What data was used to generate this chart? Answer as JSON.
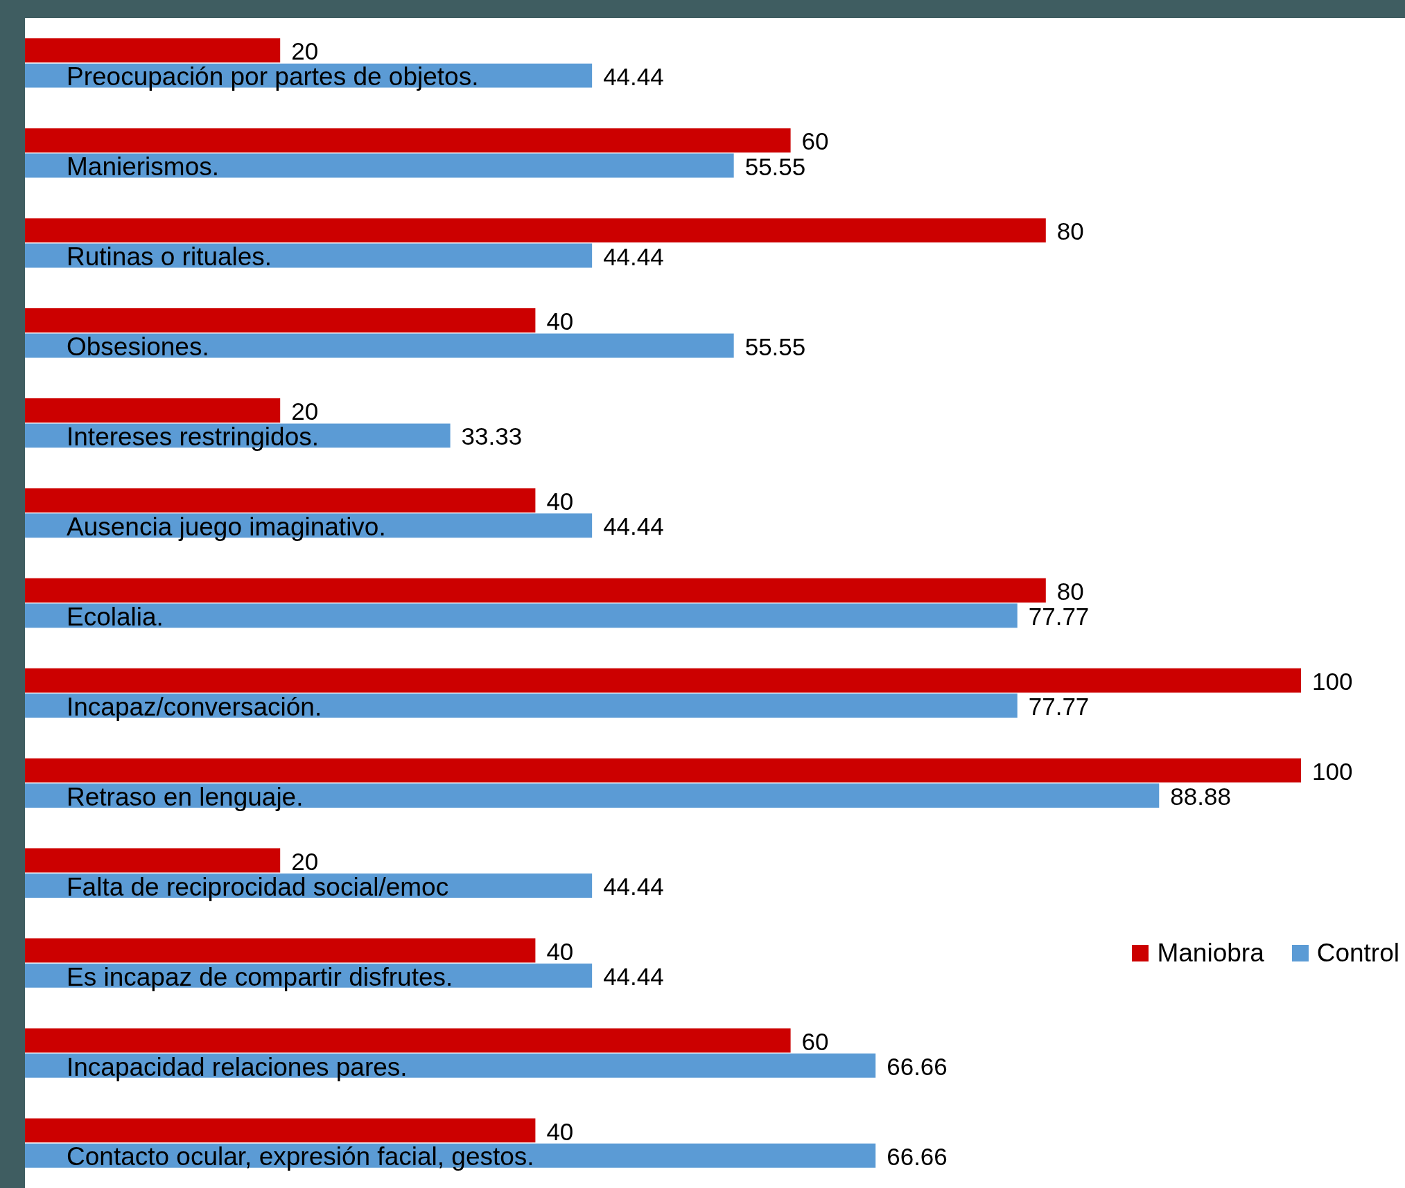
{
  "chart_data": {
    "type": "bar",
    "orientation": "horizontal",
    "data_labels": true,
    "legend": "right",
    "categories": [
      "Preocupación por partes de objetos.",
      "Manierismos.",
      "Rutinas o rituales.",
      "Obsesiones.",
      "Intereses restringidos.",
      "Ausencia juego imaginativo.",
      "Ecolalia.",
      "Incapaz/conversación.",
      "Retraso en lenguaje.",
      "Falta de reciprocidad social/emoc",
      "Es incapaz de compartir disfrutes.",
      "Incapacidad relaciones pares.",
      "Contacto ocular, expresión facial, gestos."
    ],
    "series": [
      {
        "name": "Maniobra",
        "color": "#cc0000",
        "values": [
          20,
          60,
          80,
          40,
          20,
          40,
          80,
          100,
          100,
          20,
          40,
          60,
          40
        ]
      },
      {
        "name": "Control",
        "color": "#5b9bd5",
        "values": [
          44.44,
          55.55,
          44.44,
          55.55,
          33.33,
          44.44,
          77.77,
          77.77,
          88.88,
          44.44,
          44.44,
          66.66,
          66.66
        ]
      }
    ]
  }
}
